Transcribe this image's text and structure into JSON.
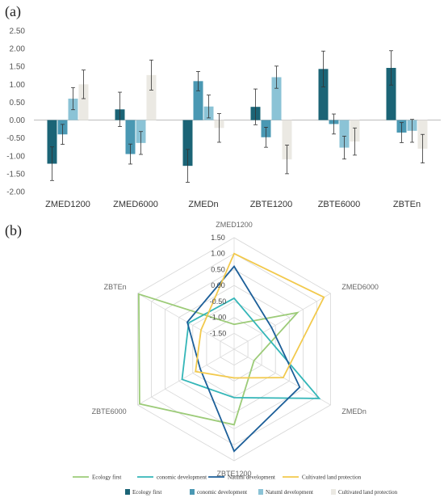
{
  "panels": {
    "a": "(a)",
    "b": "(b)"
  },
  "colors": {
    "bar": [
      "#1b6476",
      "#4a98b3",
      "#8bc3d6",
      "#ebe9e3"
    ],
    "line": [
      "#9ccb78",
      "#34b6b8",
      "#1c5f99",
      "#f2c94c"
    ]
  },
  "chart_data": [
    {
      "type": "bar",
      "title": "",
      "categories": [
        "ZMED1200",
        "ZMED6000",
        "ZMEDn",
        "ZBTE1200",
        "ZBTE6000",
        "ZBTEn"
      ],
      "ylim": [
        -2.0,
        2.5
      ],
      "yticks": [
        "2.50",
        "2.00",
        "1.50",
        "1.00",
        "0.50",
        "0.00",
        "-0.50",
        "-1.00",
        "-1.50",
        "-2.00"
      ],
      "ytick_values": [
        2.5,
        2.0,
        1.5,
        1.0,
        0.5,
        0.0,
        -0.5,
        -1.0,
        -1.5,
        -2.0
      ],
      "series": [
        {
          "name": "Ecology first",
          "values": [
            -1.22,
            0.3,
            -1.28,
            0.37,
            1.43,
            1.46
          ],
          "errors": [
            0.47,
            0.48,
            0.46,
            0.5,
            0.5,
            0.48
          ]
        },
        {
          "name": "conomic development",
          "values": [
            -0.4,
            -0.95,
            1.09,
            -0.48,
            -0.11,
            -0.35
          ],
          "errors": [
            0.28,
            0.28,
            0.27,
            0.28,
            0.28,
            0.28
          ]
        },
        {
          "name": "Natuml development",
          "values": [
            0.6,
            -0.64,
            0.38,
            1.2,
            -0.77,
            -0.3
          ],
          "errors": [
            0.31,
            0.32,
            0.32,
            0.31,
            0.32,
            0.32
          ]
        },
        {
          "name": "Cultivated land protection",
          "values": [
            1.0,
            1.26,
            -0.22,
            -1.1,
            -0.6,
            -0.8
          ],
          "errors": [
            0.4,
            0.42,
            0.4,
            0.4,
            0.38,
            0.4
          ]
        }
      ]
    },
    {
      "type": "radar",
      "title": "",
      "axes": [
        "ZMED1200",
        "ZMED6000",
        "ZMEDn",
        "ZBTE1200",
        "ZBTE6000",
        "ZBTEn"
      ],
      "rlim": [
        -2.0,
        1.5
      ],
      "rticks": [
        "1.50",
        "1.00",
        "0.50",
        "0.00",
        "-0.50",
        "-1.00",
        "-1.50"
      ],
      "rtick_values": [
        1.5,
        1.0,
        0.5,
        0.0,
        -0.5,
        -1.0,
        -1.5
      ],
      "series": [
        {
          "name": "Ecology first",
          "values": [
            -1.22,
            0.3,
            -1.28,
            0.37,
            1.43,
            1.46
          ]
        },
        {
          "name": "conomic development",
          "values": [
            -0.4,
            -0.95,
            1.09,
            -0.48,
            -0.11,
            -0.35
          ]
        },
        {
          "name": "Natuml development",
          "values": [
            0.6,
            -0.64,
            0.38,
            1.2,
            -0.77,
            -0.3
          ]
        },
        {
          "name": "Cultivated land protection",
          "values": [
            1.0,
            1.26,
            -0.22,
            -1.1,
            -0.6,
            -0.8
          ]
        }
      ]
    }
  ]
}
